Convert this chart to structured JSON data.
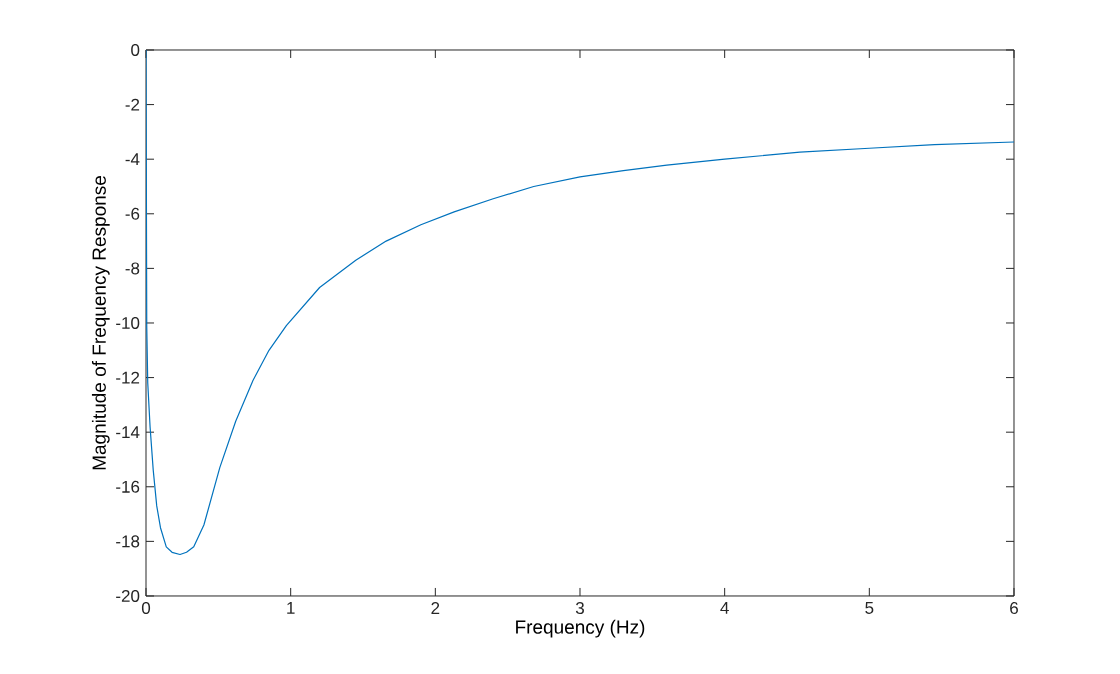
{
  "chart_data": {
    "type": "line",
    "xlabel": "Frequency (Hz)",
    "ylabel": "Magnitude of Frequency Response",
    "xlim": [
      0,
      6
    ],
    "ylim": [
      -20,
      0
    ],
    "xticks": [
      0,
      1,
      2,
      3,
      4,
      5,
      6
    ],
    "yticks": [
      -20,
      -18,
      -16,
      -14,
      -12,
      -10,
      -8,
      -6,
      -4,
      -2,
      0
    ],
    "grid": false,
    "marker": "none",
    "line_style": "solid",
    "series": [
      {
        "color": "#0072bd",
        "x": [
          0,
          0.002,
          0.005,
          0.012,
          0.028,
          0.05,
          0.074,
          0.1,
          0.14,
          0.18,
          0.235,
          0.28,
          0.33,
          0.4,
          0.51,
          0.62,
          0.74,
          0.85,
          0.97,
          1.2,
          1.45,
          1.66,
          1.9,
          2.13,
          2.4,
          2.68,
          3.0,
          3.3,
          3.6,
          4.0,
          4.52,
          5.0,
          5.45,
          6.0
        ],
        "values": [
          0,
          -4,
          -10.1,
          -12.2,
          -13.8,
          -15.4,
          -16.7,
          -17.5,
          -18.2,
          -18.4,
          -18.48,
          -18.4,
          -18.2,
          -17.4,
          -15.3,
          -13.6,
          -12.1,
          -11.0,
          -10.1,
          -8.7,
          -7.7,
          -7.0,
          -6.4,
          -5.93,
          -5.45,
          -5.0,
          -4.65,
          -4.42,
          -4.22,
          -4.0,
          -3.74,
          -3.6,
          -3.47,
          -3.37
        ]
      }
    ]
  }
}
